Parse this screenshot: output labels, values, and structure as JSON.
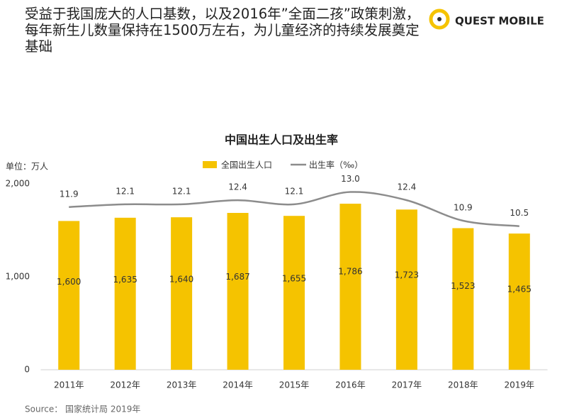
{
  "header": {
    "title": "受益于我国庞大的人口基数，以及2016年”全面二孩”政策刺激，每年新生儿数量保持在1500万左右，为儿童经济的持续发展奠定基础"
  },
  "logo": {
    "text": "QUEST MOBILE"
  },
  "chart_data": {
    "type": "bar",
    "title": "中国出生人口及出生率",
    "unit_label": "单位：万人",
    "categories": [
      "2011年",
      "2012年",
      "2013年",
      "2014年",
      "2015年",
      "2016年",
      "2017年",
      "2018年",
      "2019年"
    ],
    "series": [
      {
        "name": "全国出生人口",
        "type": "bar",
        "color": "#f5c300",
        "values": [
          1600,
          1635,
          1640,
          1687,
          1655,
          1786,
          1723,
          1523,
          1465
        ],
        "value_labels": [
          "1,600",
          "1,635",
          "1,640",
          "1,687",
          "1,655",
          "1,786",
          "1,723",
          "1,523",
          "1,465"
        ]
      },
      {
        "name": "出生率（‰）",
        "type": "line",
        "axis": "y2",
        "color": "#8c8c8c",
        "values": [
          11.9,
          12.1,
          12.1,
          12.4,
          12.1,
          13.0,
          12.4,
          10.9,
          10.5
        ],
        "value_labels": [
          "11.9",
          "12.1",
          "12.1",
          "12.4",
          "12.1",
          "13.0",
          "12.4",
          "10.9",
          "10.5"
        ]
      }
    ],
    "ylim": [
      0,
      2000
    ],
    "yticks": [
      0,
      {
        "value": 1000,
        "label": "1,000"
      },
      {
        "value": 2000,
        "label": "2,000"
      }
    ],
    "y2lim": [
      0,
      13.6
    ],
    "legend": "top"
  },
  "source": "Source： 国家统计局 2019年"
}
